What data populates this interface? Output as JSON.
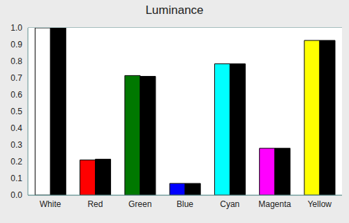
{
  "chart_data": {
    "type": "bar",
    "title": "Luminance",
    "categories": [
      "White",
      "Red",
      "Green",
      "Blue",
      "Cyan",
      "Magenta",
      "Yellow"
    ],
    "series": [
      {
        "colors": [
          "#ffffff",
          "#ff0000",
          "#007800",
          "#0000ff",
          "#00ffff",
          "#ff00ff",
          "#ffff00"
        ],
        "values": [
          1.0,
          0.21,
          0.715,
          0.07,
          0.785,
          0.28,
          0.925
        ]
      },
      {
        "color": "#000000",
        "values": [
          1.0,
          0.215,
          0.71,
          0.07,
          0.785,
          0.28,
          0.925
        ]
      }
    ],
    "ylim": [
      0,
      1
    ],
    "yticks": [
      {
        "value": 0,
        "label": "0.0"
      },
      0.1,
      0.2,
      0.3,
      0.4,
      0.5,
      0.6,
      0.7,
      0.8,
      0.9,
      {
        "value": 1,
        "label": "1.0"
      }
    ],
    "grid": true
  }
}
